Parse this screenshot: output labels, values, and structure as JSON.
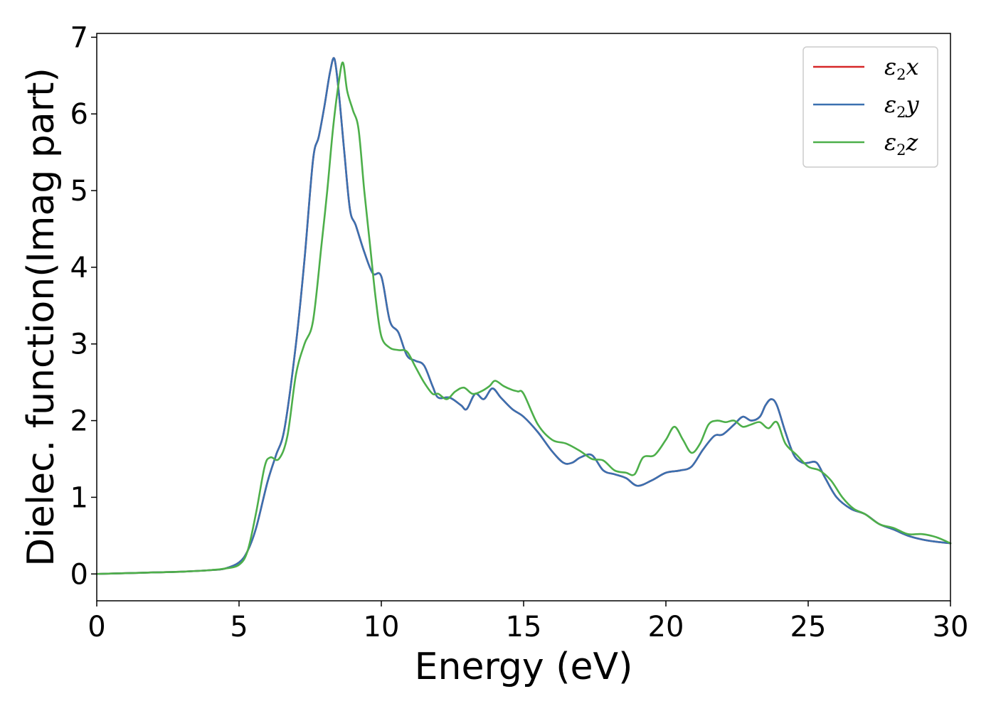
{
  "chart_data": {
    "type": "line",
    "title": "",
    "xlabel": "Energy (eV)",
    "ylabel": "Dielec. function(Imag part)",
    "xlim": [
      0,
      30
    ],
    "ylim": [
      -0.35,
      7.05
    ],
    "xticks": [
      0,
      5,
      10,
      15,
      20,
      25,
      30
    ],
    "yticks": [
      0,
      1,
      2,
      3,
      4,
      5,
      6,
      7
    ],
    "grid": false,
    "legend_position": "top-right",
    "series": [
      {
        "name": "ε2x",
        "legend_base": "ε",
        "legend_sub": "2",
        "legend_var": "x",
        "color": "#d62728",
        "x": [
          0,
          1,
          2,
          3,
          4,
          4.5,
          5,
          5.3,
          5.6,
          6.0,
          6.3,
          6.6,
          7.0,
          7.3,
          7.6,
          7.8,
          8.0,
          8.2,
          8.35,
          8.5,
          8.7,
          8.9,
          9.1,
          9.4,
          9.7,
          10.0,
          10.3,
          10.6,
          10.9,
          11.2,
          11.5,
          11.8,
          12.0,
          12.4,
          12.8,
          13.0,
          13.3,
          13.6,
          13.9,
          14.2,
          14.6,
          15.0,
          15.5,
          16.0,
          16.4,
          16.7,
          17.0,
          17.4,
          17.8,
          18.2,
          18.6,
          19.0,
          19.5,
          20.0,
          20.5,
          20.9,
          21.3,
          21.7,
          22.0,
          22.4,
          22.7,
          23.0,
          23.3,
          23.5,
          23.7,
          23.9,
          24.2,
          24.5,
          24.8,
          25.0,
          25.3,
          25.6,
          26.0,
          26.5,
          27.0,
          27.5,
          28.0,
          28.5,
          29.0,
          29.5,
          30.0
        ],
        "y": [
          0.0,
          0.01,
          0.02,
          0.03,
          0.05,
          0.07,
          0.15,
          0.3,
          0.6,
          1.2,
          1.55,
          1.9,
          3.0,
          4.1,
          5.4,
          5.7,
          6.1,
          6.55,
          6.72,
          6.3,
          5.5,
          4.75,
          4.55,
          4.2,
          3.92,
          3.88,
          3.3,
          3.15,
          2.85,
          2.78,
          2.72,
          2.45,
          2.3,
          2.3,
          2.2,
          2.15,
          2.35,
          2.28,
          2.42,
          2.3,
          2.15,
          2.05,
          1.85,
          1.6,
          1.45,
          1.45,
          1.52,
          1.55,
          1.35,
          1.3,
          1.25,
          1.15,
          1.22,
          1.32,
          1.35,
          1.4,
          1.62,
          1.8,
          1.82,
          1.95,
          2.05,
          2.0,
          2.05,
          2.2,
          2.28,
          2.2,
          1.85,
          1.55,
          1.45,
          1.45,
          1.45,
          1.25,
          1.0,
          0.85,
          0.78,
          0.65,
          0.58,
          0.5,
          0.45,
          0.42,
          0.4
        ]
      },
      {
        "name": "ε2y",
        "legend_base": "ε",
        "legend_sub": "2",
        "legend_var": "y",
        "color": "#3a70b0",
        "x": [
          0,
          1,
          2,
          3,
          4,
          4.5,
          5,
          5.3,
          5.6,
          6.0,
          6.3,
          6.6,
          7.0,
          7.3,
          7.6,
          7.8,
          8.0,
          8.2,
          8.35,
          8.5,
          8.7,
          8.9,
          9.1,
          9.4,
          9.7,
          10.0,
          10.3,
          10.6,
          10.9,
          11.2,
          11.5,
          11.8,
          12.0,
          12.4,
          12.8,
          13.0,
          13.3,
          13.6,
          13.9,
          14.2,
          14.6,
          15.0,
          15.5,
          16.0,
          16.4,
          16.7,
          17.0,
          17.4,
          17.8,
          18.2,
          18.6,
          19.0,
          19.5,
          20.0,
          20.5,
          20.9,
          21.3,
          21.7,
          22.0,
          22.4,
          22.7,
          23.0,
          23.3,
          23.5,
          23.7,
          23.9,
          24.2,
          24.5,
          24.8,
          25.0,
          25.3,
          25.6,
          26.0,
          26.5,
          27.0,
          27.5,
          28.0,
          28.5,
          29.0,
          29.5,
          30.0
        ],
        "y": [
          0.0,
          0.01,
          0.02,
          0.03,
          0.05,
          0.07,
          0.15,
          0.3,
          0.6,
          1.2,
          1.55,
          1.9,
          3.0,
          4.1,
          5.4,
          5.7,
          6.1,
          6.55,
          6.72,
          6.3,
          5.5,
          4.75,
          4.55,
          4.2,
          3.92,
          3.88,
          3.3,
          3.15,
          2.85,
          2.78,
          2.72,
          2.45,
          2.3,
          2.3,
          2.2,
          2.15,
          2.35,
          2.28,
          2.42,
          2.3,
          2.15,
          2.05,
          1.85,
          1.6,
          1.45,
          1.45,
          1.52,
          1.55,
          1.35,
          1.3,
          1.25,
          1.15,
          1.22,
          1.32,
          1.35,
          1.4,
          1.62,
          1.8,
          1.82,
          1.95,
          2.05,
          2.0,
          2.05,
          2.2,
          2.28,
          2.2,
          1.85,
          1.55,
          1.45,
          1.45,
          1.45,
          1.25,
          1.0,
          0.85,
          0.78,
          0.65,
          0.58,
          0.5,
          0.45,
          0.42,
          0.4
        ]
      },
      {
        "name": "ε2z",
        "legend_base": "ε",
        "legend_sub": "2",
        "legend_var": "z",
        "color": "#4daf4a",
        "x": [
          0,
          1,
          2,
          3,
          4,
          4.5,
          5,
          5.3,
          5.6,
          5.9,
          6.1,
          6.4,
          6.7,
          7.0,
          7.3,
          7.6,
          7.9,
          8.1,
          8.3,
          8.5,
          8.65,
          8.8,
          9.0,
          9.2,
          9.4,
          9.6,
          9.8,
          10.0,
          10.3,
          10.6,
          10.9,
          11.2,
          11.5,
          11.8,
          12.0,
          12.3,
          12.6,
          12.9,
          13.2,
          13.5,
          13.8,
          14.0,
          14.3,
          14.6,
          14.8,
          15.0,
          15.5,
          16.0,
          16.5,
          17.0,
          17.4,
          17.8,
          18.2,
          18.6,
          18.9,
          19.2,
          19.6,
          20.0,
          20.3,
          20.6,
          20.9,
          21.2,
          21.5,
          21.8,
          22.1,
          22.4,
          22.7,
          23.0,
          23.3,
          23.6,
          23.9,
          24.2,
          24.6,
          25.0,
          25.4,
          25.8,
          26.2,
          26.6,
          27.0,
          27.5,
          28.0,
          28.5,
          29.0,
          29.5,
          30.0
        ],
        "y": [
          0.0,
          0.01,
          0.02,
          0.03,
          0.05,
          0.07,
          0.12,
          0.3,
          0.8,
          1.4,
          1.52,
          1.5,
          1.8,
          2.6,
          3.0,
          3.3,
          4.3,
          5.0,
          5.8,
          6.4,
          6.67,
          6.3,
          6.05,
          5.8,
          5.0,
          4.3,
          3.6,
          3.1,
          2.95,
          2.92,
          2.9,
          2.7,
          2.5,
          2.35,
          2.35,
          2.28,
          2.38,
          2.43,
          2.35,
          2.38,
          2.45,
          2.52,
          2.45,
          2.4,
          2.38,
          2.35,
          1.95,
          1.75,
          1.7,
          1.6,
          1.5,
          1.48,
          1.35,
          1.32,
          1.3,
          1.52,
          1.55,
          1.75,
          1.92,
          1.75,
          1.58,
          1.7,
          1.95,
          2.0,
          1.98,
          2.0,
          1.92,
          1.95,
          1.98,
          1.9,
          1.98,
          1.7,
          1.55,
          1.4,
          1.35,
          1.22,
          1.0,
          0.85,
          0.78,
          0.65,
          0.6,
          0.52,
          0.52,
          0.48,
          0.4
        ]
      }
    ]
  }
}
